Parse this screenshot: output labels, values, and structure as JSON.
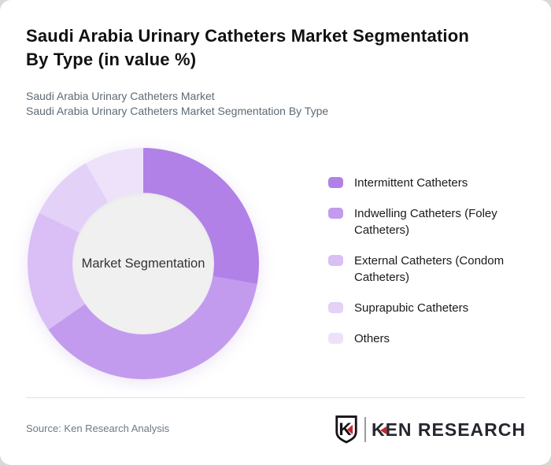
{
  "header": {
    "title_line1": "Saudi Arabia Urinary Catheters Market Segmentation",
    "title_line2": "By Type (in value %)",
    "subtitle_line1": "Saudi Arabia Urinary Catheters Market",
    "subtitle_line2": "Saudi Arabia Urinary Catheters Market Segmentation By Type"
  },
  "chart_data": {
    "type": "pie",
    "variant": "donut",
    "title": "Saudi Arabia Urinary Catheters Market Segmentation By Type (in value %)",
    "center_label": "Market Segmentation",
    "categories": [
      "Intermittent Catheters",
      "Indwelling Catheters (Foley Catheters)",
      "External Catheters (Condom Catheters)",
      "Suprapubic Catheters",
      "Others"
    ],
    "values": [
      27.8,
      37.5,
      16.9,
      9.5,
      8.3
    ],
    "value_unit": "percent of market value",
    "value_labels_shown": false,
    "colors": [
      "#b181e7",
      "#c39bee",
      "#d9bff5",
      "#e3d1f8",
      "#eee2fb"
    ],
    "legend_position": "right",
    "start_angle_deg": 0,
    "direction": "clockwise"
  },
  "footer": {
    "source": "Source: Ken Research Analysis",
    "logo": {
      "monogram": "K",
      "brand_k": "K",
      "brand_rest": "EN RESEARCH",
      "brand": "KEN RESEARCH"
    }
  },
  "theme": {
    "card_background": "#ffffff",
    "page_background": "#d9d9d9",
    "title_color": "#111111",
    "subtitle_color": "#5d6a75",
    "legend_text_color": "#1a1a1a",
    "center_circle_color": "#f0f0f0",
    "center_text_color": "#333333",
    "divider_color": "#e1e1e1",
    "source_color": "#6e7a85",
    "logo_dark": "#26262e",
    "logo_red": "#c9252d"
  }
}
